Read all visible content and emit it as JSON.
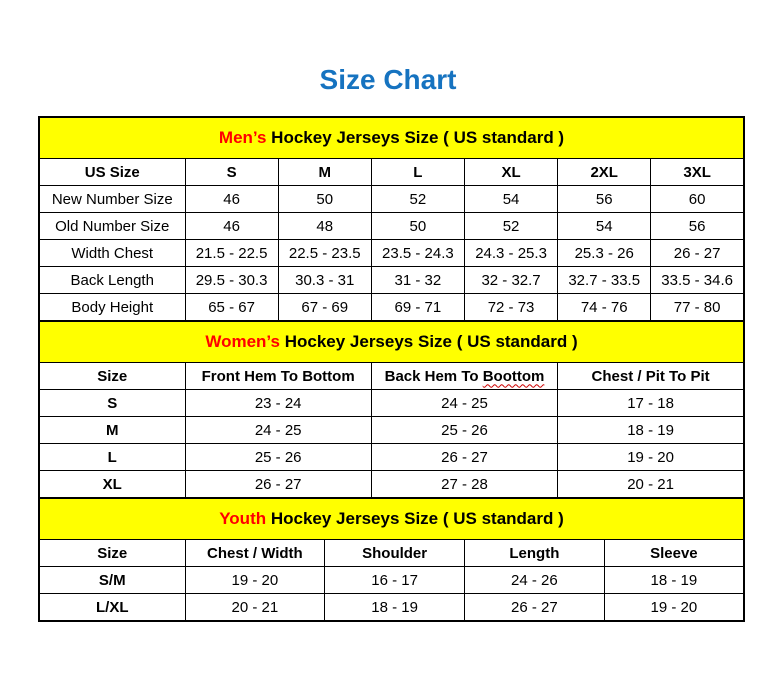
{
  "page": {
    "title": "Size Chart"
  },
  "colors": {
    "title_blue": "#1673c0",
    "band_yellow": "#ffff00",
    "accent_red": "#ff0000",
    "border_black": "#000000"
  },
  "tables": [
    {
      "id": "mens",
      "title_accent": "Men’s",
      "title_rest": " Hockey Jerseys Size ( US standard )",
      "columns": [
        "US Size",
        "S",
        "M",
        "L",
        "XL",
        "2XL",
        "3XL"
      ],
      "rows": [
        [
          "New Number Size",
          "46",
          "50",
          "52",
          "54",
          "56",
          "60"
        ],
        [
          "Old Number Size",
          "46",
          "48",
          "50",
          "52",
          "54",
          "56"
        ],
        [
          "Width Chest",
          "21.5 - 22.5",
          "22.5 - 23.5",
          "23.5 - 24.3",
          "24.3 - 25.3",
          "25.3 - 26",
          "26 - 27"
        ],
        [
          "Back Length",
          "29.5 - 30.3",
          "30.3 - 31",
          "31 - 32",
          "32 - 32.7",
          "32.7 - 33.5",
          "33.5 - 34.6"
        ],
        [
          "Body Height",
          "65 - 67",
          "67 - 69",
          "69 - 71",
          "72 - 73",
          "74 - 76",
          "77 - 80"
        ]
      ]
    },
    {
      "id": "womens",
      "title_accent": "Women’s",
      "title_rest": " Hockey Jerseys Size ( US standard )",
      "columns": [
        "Size",
        "Front Hem To Bottom",
        "Back Hem To Boottom",
        "Chest / Pit To Pit"
      ],
      "misspelled_column_index": 2,
      "misspelled_word": "Boottom",
      "rows": [
        [
          "S",
          "23 - 24",
          "24 - 25",
          "17 - 18"
        ],
        [
          "M",
          "24 - 25",
          "25 - 26",
          "18 - 19"
        ],
        [
          "L",
          "25 - 26",
          "26 - 27",
          "19 - 20"
        ],
        [
          "XL",
          "26 - 27",
          "27 - 28",
          "20 - 21"
        ]
      ]
    },
    {
      "id": "youth",
      "title_accent": "Youth",
      "title_rest": " Hockey Jerseys Size ( US standard )",
      "columns": [
        "Size",
        "Chest / Width",
        "Shoulder",
        "Length",
        "Sleeve"
      ],
      "rows": [
        [
          "S/M",
          "19 - 20",
          "16 - 17",
          "24 - 26",
          "18 - 19"
        ],
        [
          "L/XL",
          "20 - 21",
          "18 - 19",
          "26 - 27",
          "19 - 20"
        ]
      ]
    }
  ]
}
